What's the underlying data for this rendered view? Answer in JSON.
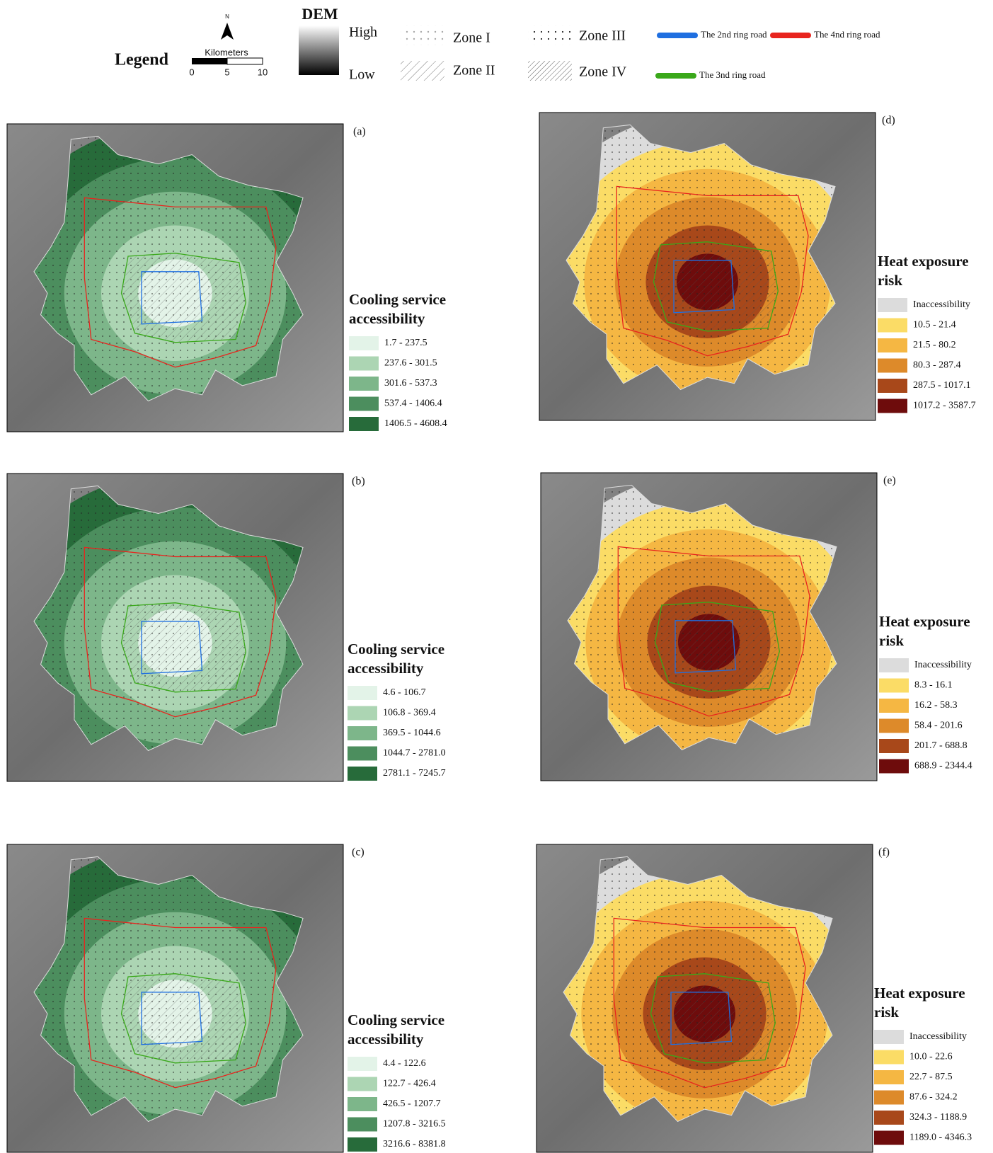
{
  "legend": {
    "title": "Legend",
    "north": "N",
    "scale_unit": "Kilometers",
    "scale_ticks": [
      "0",
      "5",
      "10"
    ],
    "dem_title": "DEM",
    "dem_high": "High",
    "dem_low": "Low",
    "zones": [
      "Zone I",
      "Zone II",
      "Zone III",
      "Zone IV"
    ],
    "roads": [
      {
        "name": "The 2nd ring road",
        "color": "#1f6fe0"
      },
      {
        "name": "The 4nd ring road",
        "color": "#e8241e"
      },
      {
        "name": "The 3nd ring road",
        "color": "#3aa81a"
      }
    ]
  },
  "panels": [
    {
      "label": "(a)",
      "legend_title": [
        "Cooling service",
        "accessibility"
      ],
      "classes": [
        {
          "label": "1.7 - 237.5",
          "color": "#e3f3e8"
        },
        {
          "label": "237.6 - 301.5",
          "color": "#acd5b3"
        },
        {
          "label": "301.6 - 537.3",
          "color": "#7db68a"
        },
        {
          "label": "537.4 - 1406.4",
          "color": "#4c8e5e"
        },
        {
          "label": "1406.5 - 4608.4",
          "color": "#276b3a"
        }
      ]
    },
    {
      "label": "(b)",
      "legend_title": [
        "Cooling service",
        "accessibility"
      ],
      "classes": [
        {
          "label": "4.6 - 106.7",
          "color": "#e3f3e8"
        },
        {
          "label": "106.8 - 369.4",
          "color": "#acd5b3"
        },
        {
          "label": "369.5 - 1044.6",
          "color": "#7db68a"
        },
        {
          "label": "1044.7 - 2781.0",
          "color": "#4c8e5e"
        },
        {
          "label": "2781.1 - 7245.7",
          "color": "#276b3a"
        }
      ]
    },
    {
      "label": "(c)",
      "legend_title": [
        "Cooling service",
        "accessibility"
      ],
      "classes": [
        {
          "label": "4.4 - 122.6",
          "color": "#e3f3e8"
        },
        {
          "label": "122.7 - 426.4",
          "color": "#acd5b3"
        },
        {
          "label": "426.5 - 1207.7",
          "color": "#7db68a"
        },
        {
          "label": "1207.8 - 3216.5",
          "color": "#4c8e5e"
        },
        {
          "label": "3216.6 - 8381.8",
          "color": "#276b3a"
        }
      ]
    },
    {
      "label": "(d)",
      "legend_title": [
        "Heat exposure",
        "risk"
      ],
      "classes": [
        {
          "label": "Inaccessibility",
          "color": "#dcdcdc"
        },
        {
          "label": "10.5 - 21.4",
          "color": "#fbdc66"
        },
        {
          "label": "21.5 - 80.2",
          "color": "#f5b743"
        },
        {
          "label": "80.3 - 287.4",
          "color": "#dd8a2a"
        },
        {
          "label": "287.5 - 1017.1",
          "color": "#a8481a"
        },
        {
          "label": "1017.2 - 3587.7",
          "color": "#6e0c0c"
        }
      ]
    },
    {
      "label": "(e)",
      "legend_title": [
        "Heat exposure",
        "risk"
      ],
      "classes": [
        {
          "label": "Inaccessibility",
          "color": "#dcdcdc"
        },
        {
          "label": "8.3 - 16.1",
          "color": "#fbdc66"
        },
        {
          "label": "16.2 - 58.3",
          "color": "#f5b743"
        },
        {
          "label": "58.4 - 201.6",
          "color": "#dd8a2a"
        },
        {
          "label": "201.7 - 688.8",
          "color": "#a8481a"
        },
        {
          "label": "688.9 - 2344.4",
          "color": "#6e0c0c"
        }
      ]
    },
    {
      "label": "(f)",
      "legend_title": [
        "Heat exposure",
        "risk"
      ],
      "classes": [
        {
          "label": "Inaccessibility",
          "color": "#dcdcdc"
        },
        {
          "label": "10.0 - 22.6",
          "color": "#fbdc66"
        },
        {
          "label": "22.7 - 87.5",
          "color": "#f5b743"
        },
        {
          "label": "87.6 - 324.2",
          "color": "#dd8a2a"
        },
        {
          "label": "324.3 - 1188.9",
          "color": "#a8481a"
        },
        {
          "label": "1189.0 - 4346.3",
          "color": "#6e0c0c"
        }
      ]
    }
  ]
}
